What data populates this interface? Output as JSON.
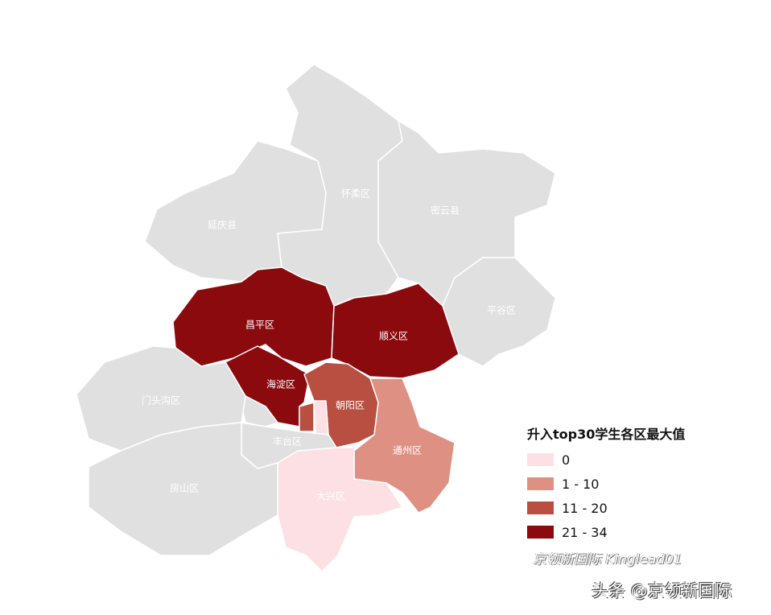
{
  "colors": {
    "none": "#e0e0e0",
    "c0": "#fde0e3",
    "c1": "#de9183",
    "c2": "#b94f40",
    "c3": "#8b0a0e"
  },
  "legend": {
    "title": "升入top30学生各区最大值",
    "items": [
      {
        "label": "0",
        "color": "#fde0e3"
      },
      {
        "label": "1 - 10",
        "color": "#de9183"
      },
      {
        "label": "11 - 20",
        "color": "#b94f40"
      },
      {
        "label": "21 - 34",
        "color": "#8b0a0e"
      }
    ]
  },
  "districts": [
    {
      "id": "yanqing",
      "label": "延庆县",
      "class": "none"
    },
    {
      "id": "huairou",
      "label": "怀柔区",
      "class": "none"
    },
    {
      "id": "miyun",
      "label": "密云县",
      "class": "none"
    },
    {
      "id": "pinggu",
      "label": "平谷区",
      "class": "none"
    },
    {
      "id": "changping",
      "label": "昌平区",
      "class": "21 - 34"
    },
    {
      "id": "shunyi",
      "label": "顺义区",
      "class": "21 - 34"
    },
    {
      "id": "haidian",
      "label": "海淀区",
      "class": "21 - 34"
    },
    {
      "id": "chaoyang",
      "label": "朝阳区",
      "class": "11 - 20"
    },
    {
      "id": "xicheng",
      "label": "",
      "class": "11 - 20"
    },
    {
      "id": "dongcheng",
      "label": "",
      "class": "0"
    },
    {
      "id": "tongzhou",
      "label": "通州区",
      "class": "1 - 10"
    },
    {
      "id": "daxing",
      "label": "大兴区",
      "class": "0"
    },
    {
      "id": "fengtai",
      "label": "丰台区",
      "class": "none"
    },
    {
      "id": "mentougou",
      "label": "门头沟区",
      "class": "none"
    },
    {
      "id": "fangshan",
      "label": "房山区",
      "class": "none"
    },
    {
      "id": "shijingshan",
      "label": "",
      "class": "none"
    }
  ],
  "watermark": {
    "line1": "京领新国际 Kinglead01",
    "line2": "头条 @京领新国际"
  }
}
